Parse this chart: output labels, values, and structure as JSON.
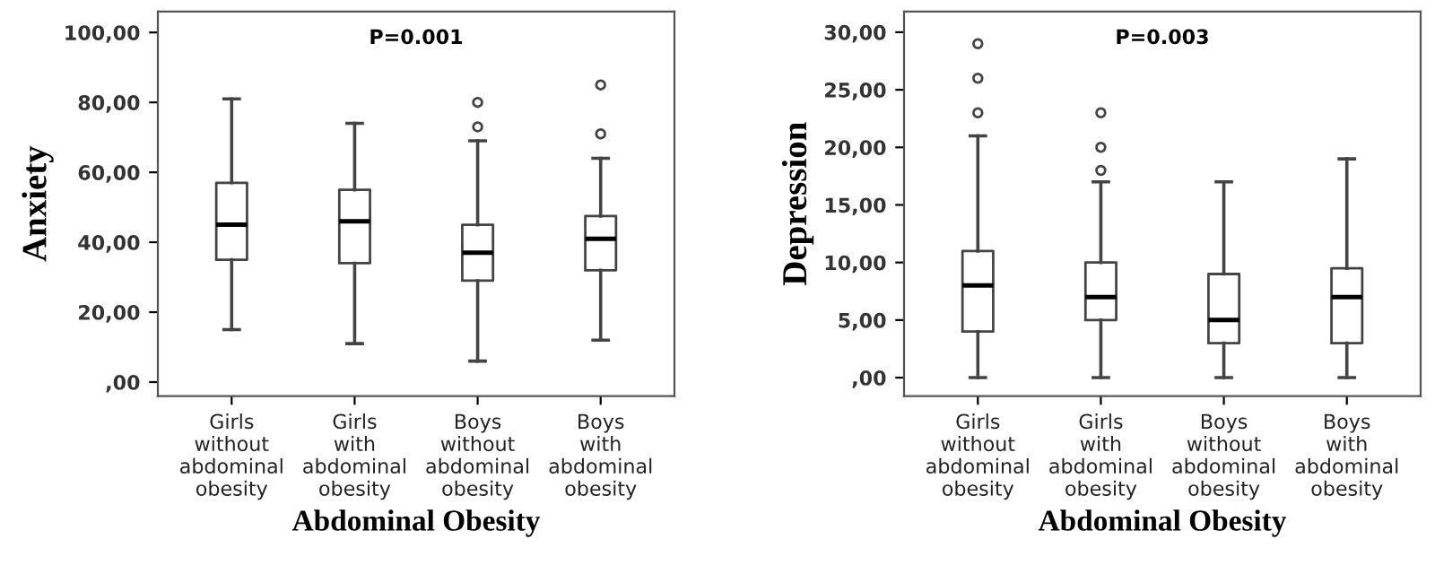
{
  "chart_data": [
    {
      "type": "box",
      "ylabel": "Anxiety",
      "xlabel": "Abdominal Obesity",
      "annotations": [
        "P=0.001"
      ],
      "categories": [
        "Girls\nwithout\nabdominal\nobesity",
        "Girls\nwith\nabdominal\nobesity",
        "Boys\nwithout\nabdominal\nobesity",
        "Boys\nwith\nabdominal\nobesity"
      ],
      "boxes": [
        {
          "low": 15,
          "q1": 35,
          "median": 45,
          "q3": 57,
          "high": 81
        },
        {
          "low": 11,
          "q1": 34,
          "median": 46,
          "q3": 55,
          "high": 74
        },
        {
          "low": 6,
          "q1": 29,
          "median": 37,
          "q3": 45,
          "high": 69,
          "outliers": [
            73,
            80
          ]
        },
        {
          "low": 12,
          "q1": 32,
          "median": 41,
          "q3": 47.5,
          "high": 64,
          "outliers": [
            71,
            85
          ]
        }
      ],
      "ylim": [
        -4,
        106
      ],
      "yticks": [
        {
          "value": 0,
          "label": ",00"
        },
        {
          "value": 20,
          "label": "20,00"
        },
        {
          "value": 40,
          "label": "40,00"
        },
        {
          "value": 60,
          "label": "60,00"
        },
        {
          "value": 80,
          "label": "80,00"
        },
        {
          "value": 100,
          "label": "100,00"
        }
      ],
      "grid": false
    },
    {
      "type": "box",
      "ylabel": "Depression",
      "xlabel": "Abdominal Obesity",
      "annotations": [
        "P=0.003"
      ],
      "categories": [
        "Girls\nwithout\nabdominal\nobesity",
        "Girls\nwith\nabdominal\nobesity",
        "Boys\nwithout\nabdominal\nobesity",
        "Boys\nwith\nabdominal\nobesity"
      ],
      "boxes": [
        {
          "low": 0,
          "q1": 4,
          "median": 8,
          "q3": 11,
          "high": 21,
          "outliers": [
            23,
            26,
            29
          ]
        },
        {
          "low": 0,
          "q1": 5,
          "median": 7,
          "q3": 10,
          "high": 17,
          "outliers": [
            18,
            20,
            23
          ]
        },
        {
          "low": 0,
          "q1": 3,
          "median": 5,
          "q3": 9,
          "high": 17
        },
        {
          "low": 0,
          "q1": 3,
          "median": 7,
          "q3": 9.5,
          "high": 19
        }
      ],
      "ylim": [
        -1.6,
        31.8
      ],
      "yticks": [
        {
          "value": 0,
          "label": ",00"
        },
        {
          "value": 5,
          "label": "5,00"
        },
        {
          "value": 10,
          "label": "10,00"
        },
        {
          "value": 15,
          "label": "15,00"
        },
        {
          "value": 20,
          "label": "20,00"
        },
        {
          "value": 25,
          "label": "25,00"
        },
        {
          "value": 30,
          "label": "30,00"
        }
      ],
      "grid": false
    }
  ]
}
